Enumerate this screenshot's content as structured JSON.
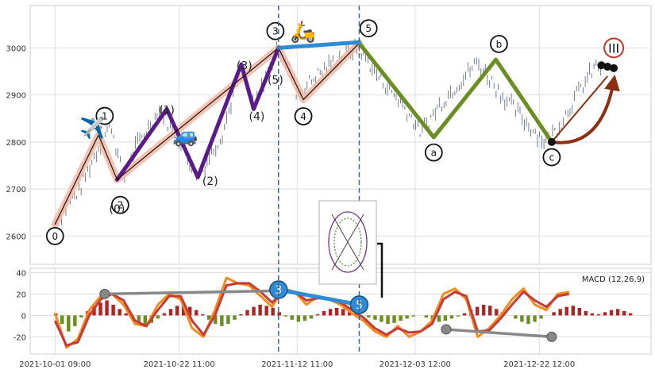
{
  "chart_data": [
    {
      "type": "line",
      "panel": "price",
      "x_ticks": [
        "2021-10-01 09:00",
        "2021-10-22 11:00",
        "2021-11-12 11:00",
        "2021-12-03 12:00",
        "2021-12-22 12:00"
      ],
      "y_ticks": [
        2600,
        2700,
        2800,
        2900,
        3000
      ],
      "ylim": [
        2540,
        3090
      ],
      "grid": true,
      "series": [
        {
          "values": [
            [
              4,
              2630
            ],
            [
              8,
              2700
            ],
            [
              11,
              2790
            ],
            [
              13,
              2840
            ],
            [
              15,
              2720
            ],
            [
              17,
              2790
            ],
            [
              21,
              2870
            ],
            [
              24,
              2800
            ],
            [
              27,
              2725
            ],
            [
              31,
              2820
            ],
            [
              34,
              2960
            ],
            [
              36,
              2870
            ],
            [
              38,
              2940
            ],
            [
              40,
              3000
            ],
            [
              42,
              2950
            ],
            [
              43,
              2900
            ],
            [
              46,
              2940
            ],
            [
              49,
              2970
            ],
            [
              51,
              2990
            ],
            [
              53,
              3000
            ],
            [
              56,
              2940
            ],
            [
              60,
              2880
            ],
            [
              63,
              2820
            ],
            [
              66,
              2880
            ],
            [
              70,
              2940
            ],
            [
              72,
              2970
            ],
            [
              76,
              2900
            ],
            [
              80,
              2840
            ],
            [
              83,
              2800
            ],
            [
              85,
              2830
            ],
            [
              88,
              2900
            ],
            [
              91,
              2960
            ]
          ]
        }
      ],
      "wave_labels": [
        {
          "text": "0",
          "x": 4,
          "y": 2627
        },
        {
          "text": "1",
          "x": 12,
          "y": 2825
        },
        {
          "text": "2",
          "x": 14.5,
          "y": 2700
        },
        {
          "text": "3",
          "x": 39.5,
          "y": 3002
        },
        {
          "text": "4",
          "x": 44,
          "y": 2885
        },
        {
          "text": "5",
          "x": 54.5,
          "y": 3008
        },
        {
          "text": "a",
          "x": 65,
          "y": 2808
        },
        {
          "text": "b",
          "x": 75.5,
          "y": 2978
        },
        {
          "text": "c",
          "x": 84,
          "y": 2798
        },
        {
          "text": "III",
          "x": 94,
          "y": 3000
        },
        {
          "text": "(0)",
          "x": 14,
          "y": 2658
        },
        {
          "text": "(1)",
          "x": 22,
          "y": 2868
        },
        {
          "text": "(2)",
          "x": 29,
          "y": 2717
        },
        {
          "text": "(3)",
          "x": 34.5,
          "y": 2963
        },
        {
          "text": "(4)",
          "x": 36.5,
          "y": 2855
        },
        {
          "text": "(5)",
          "x": 39.5,
          "y": 2932
        }
      ],
      "wave_paths": {
        "primary_pink": [
          [
            4,
            2625
          ],
          [
            11,
            2815
          ],
          [
            14,
            2720
          ],
          [
            40,
            3000
          ],
          [
            44,
            2890
          ],
          [
            53,
            3010
          ]
        ],
        "thin_black": [
          [
            4,
            2625
          ],
          [
            11,
            2815
          ],
          [
            14,
            2720
          ],
          [
            40,
            3000
          ],
          [
            44,
            2890
          ],
          [
            53,
            3010
          ]
        ],
        "purple": [
          [
            14,
            2720
          ],
          [
            22,
            2870
          ],
          [
            27,
            2725
          ],
          [
            34,
            2965
          ],
          [
            36,
            2870
          ],
          [
            40,
            3000
          ]
        ],
        "green": [
          [
            53,
            3010
          ],
          [
            65,
            2810
          ],
          [
            75,
            2975
          ],
          [
            84,
            2800
          ]
        ],
        "blue_connector": [
          [
            40,
            3000
          ],
          [
            53,
            3012
          ]
        ],
        "projection": [
          [
            84,
            2800
          ],
          [
            90,
            2900
          ],
          [
            93,
            2940
          ]
        ]
      },
      "vlines_x": [
        40,
        53
      ],
      "icons": [
        "airplane-icon",
        "car-icon",
        "scooter-icon"
      ]
    },
    {
      "type": "bar",
      "panel": "macd",
      "title": "MACD (12,26,9)",
      "y_ticks": [
        -20,
        0,
        20,
        40
      ],
      "ylim": [
        -36,
        44
      ],
      "grid": true,
      "series": [
        {
          "values": [
            [
              0,
              2
            ],
            [
              2,
              -30
            ],
            [
              4,
              -22
            ],
            [
              6,
              5
            ],
            [
              8,
              18
            ],
            [
              10,
              20
            ],
            [
              12,
              10
            ],
            [
              14,
              -8
            ],
            [
              16,
              -10
            ],
            [
              18,
              10
            ],
            [
              20,
              20
            ],
            [
              22,
              15
            ],
            [
              24,
              -12
            ],
            [
              26,
              -20
            ],
            [
              28,
              5
            ],
            [
              30,
              35
            ],
            [
              32,
              30
            ],
            [
              34,
              28
            ],
            [
              36,
              18
            ],
            [
              38,
              8
            ],
            [
              40,
              25
            ],
            [
              42,
              22
            ],
            [
              44,
              10
            ],
            [
              46,
              18
            ],
            [
              48,
              15
            ],
            [
              50,
              10
            ],
            [
              52,
              2
            ],
            [
              54,
              -5
            ],
            [
              56,
              -15
            ],
            [
              58,
              -20
            ],
            [
              60,
              -10
            ],
            [
              62,
              -20
            ],
            [
              64,
              -15
            ],
            [
              66,
              -5
            ],
            [
              68,
              20
            ],
            [
              70,
              25
            ],
            [
              72,
              15
            ],
            [
              74,
              -20
            ],
            [
              76,
              -12
            ],
            [
              78,
              0
            ],
            [
              80,
              15
            ],
            [
              82,
              25
            ],
            [
              84,
              10
            ],
            [
              86,
              5
            ],
            [
              88,
              20
            ],
            [
              90,
              22
            ]
          ]
        },
        {
          "values": [
            [
              0,
              -5
            ],
            [
              2,
              -28
            ],
            [
              4,
              -25
            ],
            [
              6,
              0
            ],
            [
              8,
              15
            ],
            [
              10,
              20
            ],
            [
              12,
              14
            ],
            [
              14,
              -5
            ],
            [
              16,
              -10
            ],
            [
              18,
              5
            ],
            [
              20,
              18
            ],
            [
              22,
              18
            ],
            [
              24,
              -5
            ],
            [
              26,
              -18
            ],
            [
              28,
              0
            ],
            [
              30,
              28
            ],
            [
              32,
              30
            ],
            [
              34,
              30
            ],
            [
              36,
              22
            ],
            [
              38,
              12
            ],
            [
              40,
              22
            ],
            [
              42,
              22
            ],
            [
              44,
              14
            ],
            [
              46,
              16
            ],
            [
              48,
              16
            ],
            [
              50,
              12
            ],
            [
              52,
              5
            ],
            [
              54,
              -2
            ],
            [
              56,
              -12
            ],
            [
              58,
              -18
            ],
            [
              60,
              -12
            ],
            [
              62,
              -16
            ],
            [
              64,
              -15
            ],
            [
              66,
              -8
            ],
            [
              68,
              15
            ],
            [
              70,
              22
            ],
            [
              72,
              18
            ],
            [
              74,
              -15
            ],
            [
              76,
              -14
            ],
            [
              78,
              -3
            ],
            [
              80,
              10
            ],
            [
              82,
              22
            ],
            [
              84,
              14
            ],
            [
              86,
              8
            ],
            [
              88,
              18
            ],
            [
              90,
              20
            ]
          ]
        }
      ],
      "histogram": [
        2,
        -8,
        -15,
        -10,
        -2,
        4,
        9,
        12,
        14,
        10,
        6,
        2,
        -3,
        -6,
        -9,
        -7,
        -3,
        2,
        6,
        9,
        10,
        8,
        5,
        1,
        -4,
        -8,
        -10,
        -8,
        -4,
        1,
        5,
        8,
        10,
        9,
        7,
        3,
        -1,
        -4,
        -6,
        -5,
        -3,
        1,
        4,
        6,
        7,
        6,
        4,
        2,
        0,
        -2,
        -4,
        -6,
        -8,
        -7,
        -5,
        -3,
        -1,
        0,
        -2,
        -4,
        -6,
        -5,
        -3,
        -1,
        2,
        5,
        8,
        10,
        9,
        6,
        3,
        0,
        -3,
        -6,
        -8,
        -6,
        -3,
        0,
        3,
        6,
        8,
        9,
        7,
        4,
        2,
        1,
        3,
        5,
        6,
        4,
        2
      ],
      "overlay_labels": [
        {
          "text": "3",
          "x": 40,
          "y": 24
        },
        {
          "text": "5",
          "x": 53,
          "y": 10
        }
      ],
      "divergence_lines": [
        [
          [
            12,
            20
          ],
          [
            40,
            23
          ]
        ],
        [
          [
            67,
            -13
          ],
          [
            84,
            -20
          ]
        ]
      ]
    }
  ],
  "macd_label": "MACD (12,26,9)",
  "inset_figure": "ferris-wheel-sketch"
}
